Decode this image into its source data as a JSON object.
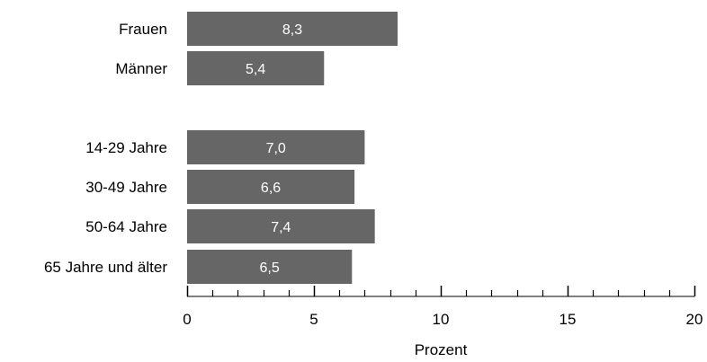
{
  "chart_data": {
    "type": "bar",
    "orientation": "horizontal",
    "categories": [
      "Frauen",
      "Männer",
      "14-29 Jahre",
      "30-49 Jahre",
      "50-64 Jahre",
      "65 Jahre und älter"
    ],
    "groups": [
      [
        "Frauen",
        "Männer"
      ],
      [
        "14-29 Jahre",
        "30-49 Jahre",
        "50-64 Jahre",
        "65 Jahre und älter"
      ]
    ],
    "values": [
      8.3,
      5.4,
      7.0,
      6.6,
      7.4,
      6.5
    ],
    "value_labels": [
      "8,3",
      "5,4",
      "7,0",
      "6,6",
      "7,4",
      "6,5"
    ],
    "xlabel": "Prozent",
    "xlim": [
      0,
      20
    ],
    "x_ticks": [
      0,
      5,
      10,
      15,
      20
    ],
    "x_minor_tick_step": 1,
    "grid": false,
    "bar_color": "#666666"
  }
}
